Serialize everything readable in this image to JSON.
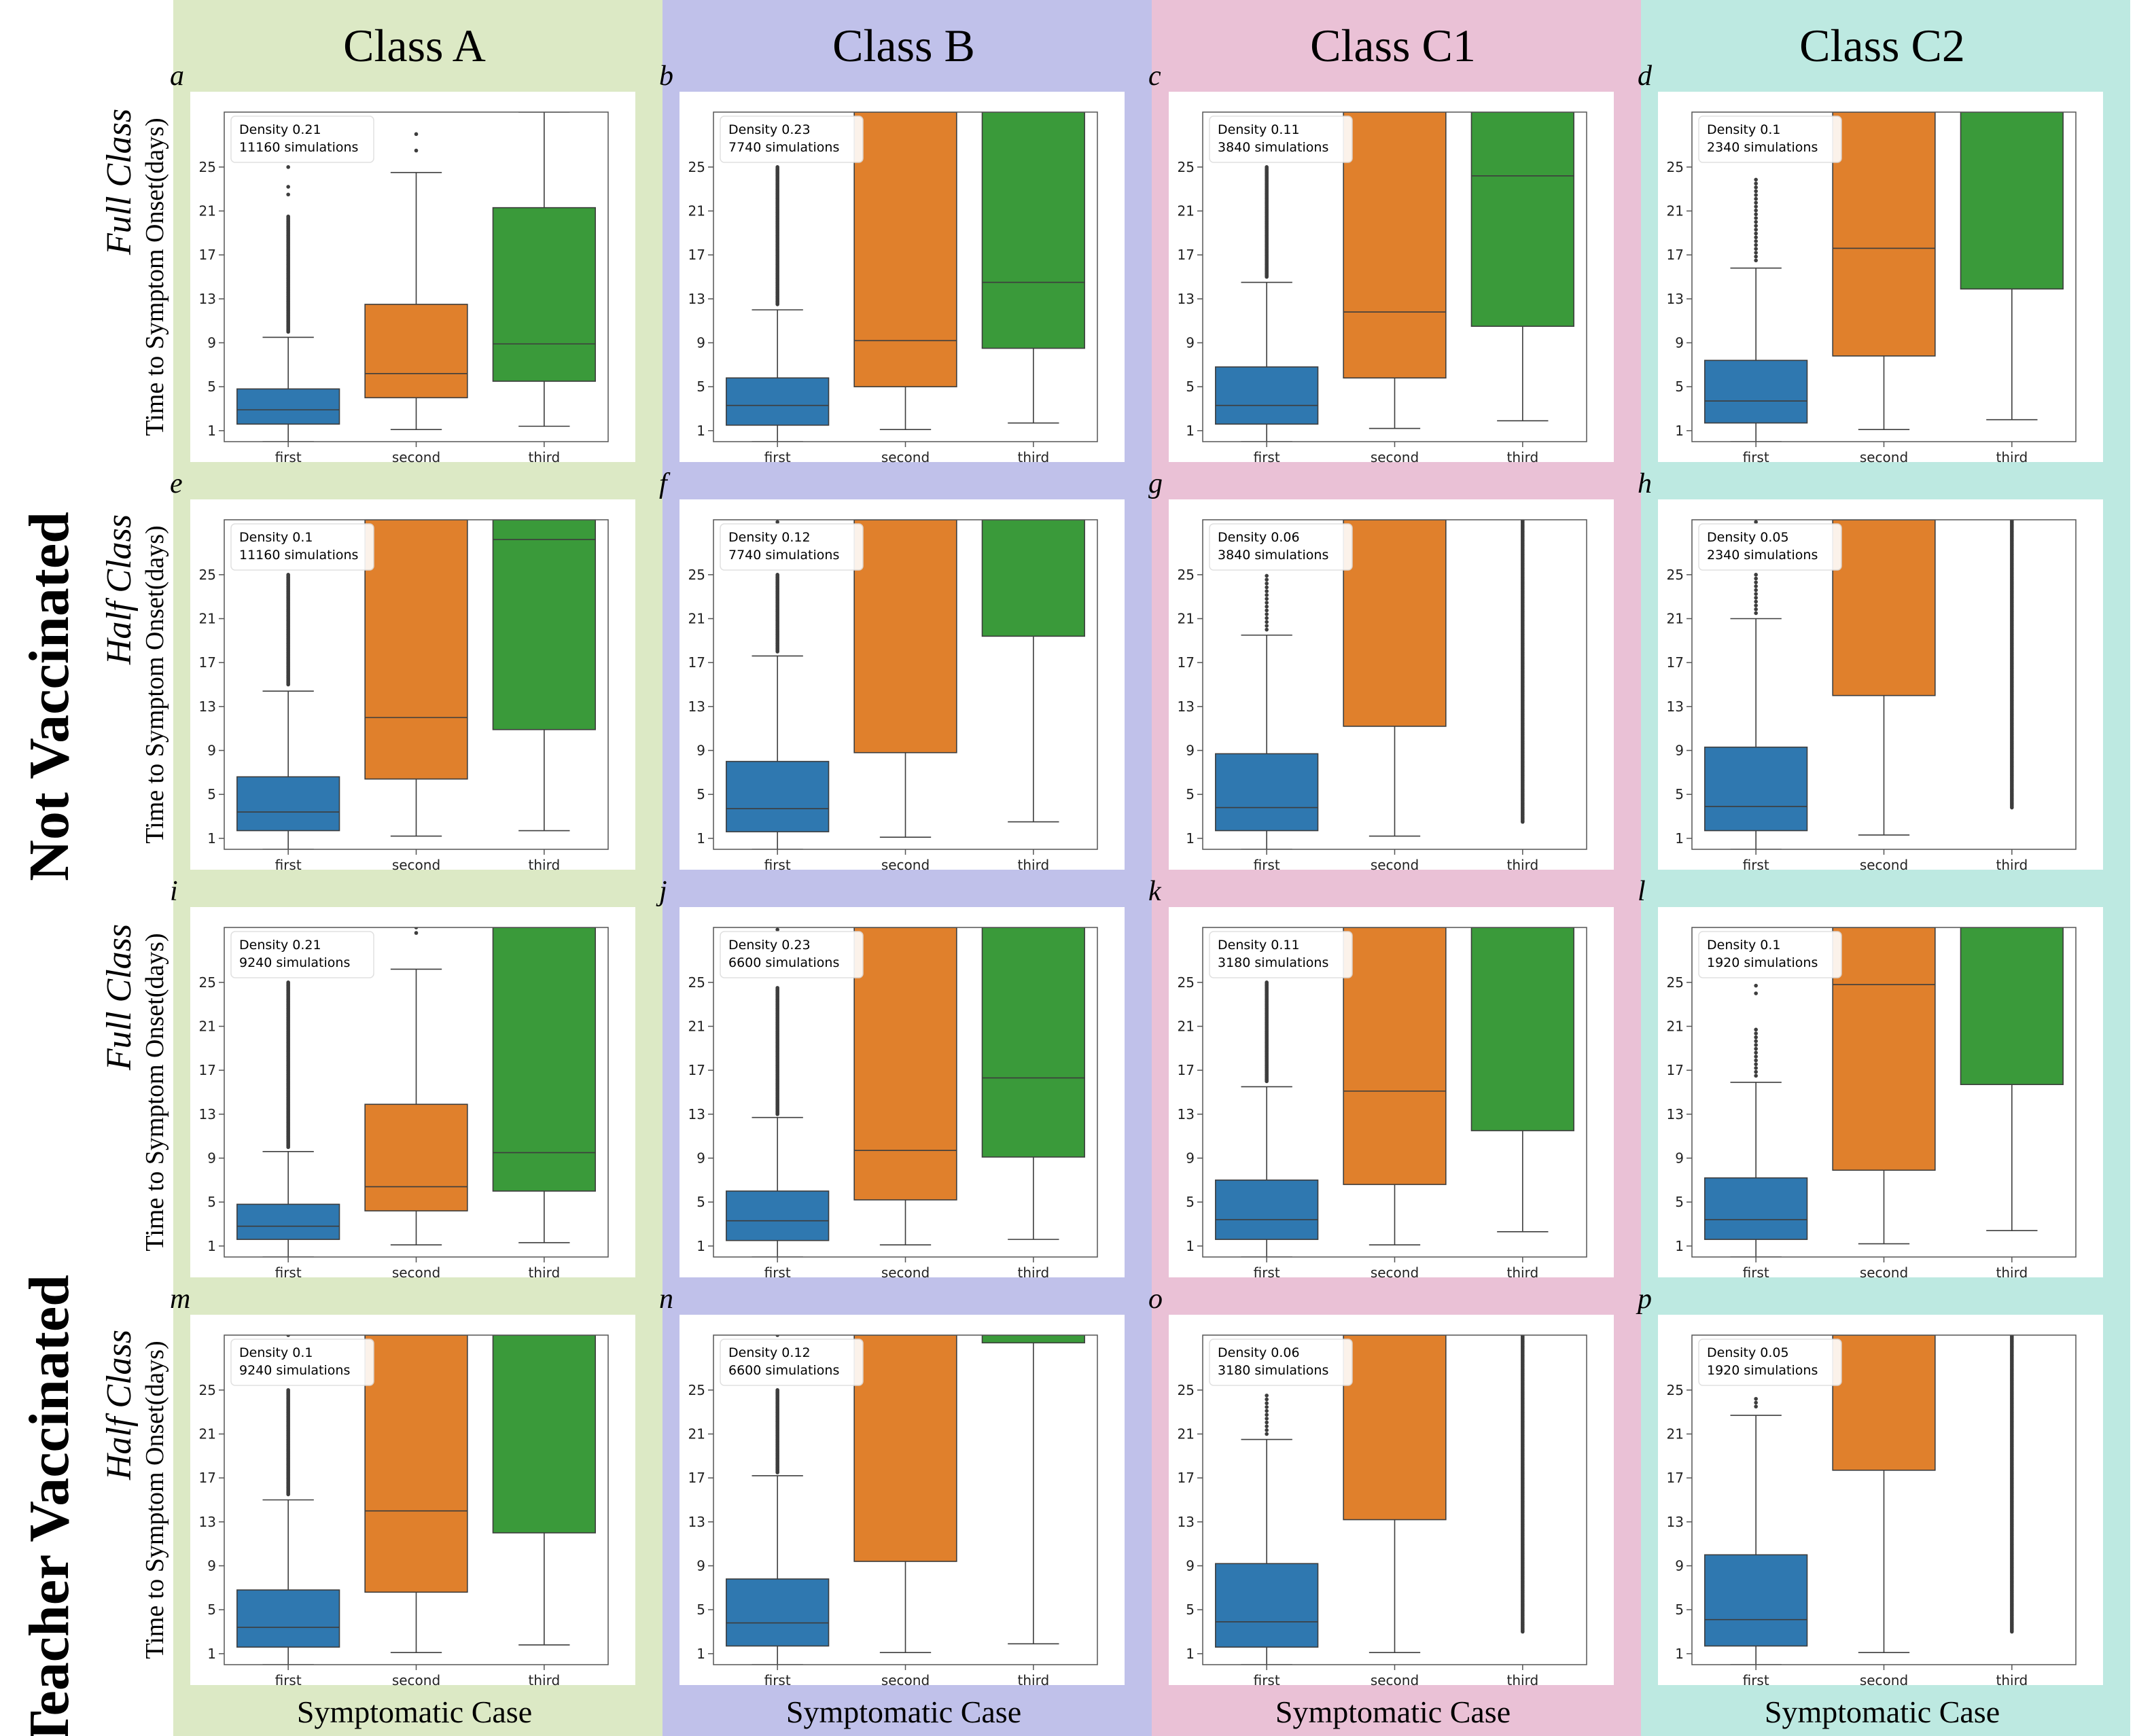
{
  "figure": {
    "column_titles": [
      "Class  A",
      "Class  B",
      "Class  C1",
      "Class  C2"
    ],
    "column_colors": [
      "#dce9c5",
      "#c0c1ea",
      "#eac1d6",
      "#bde9e1"
    ],
    "row_group_labels": [
      "Not Vaccinated",
      "Teacher Vaccinated"
    ],
    "row_sub_labels": [
      "Full Class",
      "Half Class",
      "Full Class",
      "Half Class"
    ],
    "ylabel": "Time to Symptom Onset(days)",
    "xlabel": "Symptomatic Case",
    "categories": [
      "first",
      "second",
      "third"
    ],
    "yticks": [
      1,
      5,
      9,
      13,
      17,
      21,
      25
    ],
    "ylim": [
      0,
      30
    ],
    "box_colors": [
      "#2f78b0",
      "#e0802c",
      "#3a9a3a"
    ]
  },
  "chart_data": [
    {
      "type": "box",
      "panel": "a",
      "density": "Density 0.21",
      "sims": "11160 simulations",
      "boxes": [
        {
          "q1": 1.6,
          "median": 2.9,
          "q3": 4.8,
          "lw": 0,
          "uw": 9.5,
          "out_from": 10,
          "out_to": 20.5,
          "dense": true,
          "extra": [
            22.5,
            23.2,
            25
          ]
        },
        {
          "q1": 4,
          "median": 6.2,
          "q3": 12.5,
          "lw": 1.1,
          "uw": 24.5,
          "extra": [
            26.5,
            28
          ]
        },
        {
          "q1": 5.5,
          "median": 8.9,
          "q3": 21.3,
          "lw": 1.4,
          "uw": 30
        }
      ]
    },
    {
      "type": "box",
      "panel": "b",
      "density": "Density 0.23",
      "sims": "7740 simulations",
      "boxes": [
        {
          "q1": 1.5,
          "median": 3.3,
          "q3": 5.8,
          "lw": 0,
          "uw": 12,
          "out_from": 12.5,
          "out_to": 25,
          "dense": true
        },
        {
          "q1": 5,
          "median": 9.2,
          "q3": 30,
          "lw": 1.1,
          "uw": 30
        },
        {
          "q1": 8.5,
          "median": 14.5,
          "q3": 30,
          "lw": 1.7,
          "uw": 30
        }
      ]
    },
    {
      "type": "box",
      "panel": "c",
      "density": "Density 0.11",
      "sims": "3840 simulations",
      "boxes": [
        {
          "q1": 1.6,
          "median": 3.3,
          "q3": 6.8,
          "lw": 0,
          "uw": 14.5,
          "out_from": 15,
          "out_to": 25,
          "dense": true
        },
        {
          "q1": 5.8,
          "median": 11.8,
          "q3": 30,
          "lw": 1.2,
          "uw": 30
        },
        {
          "q1": 10.5,
          "median": 24.2,
          "q3": 30,
          "lw": 1.9,
          "uw": 30
        }
      ]
    },
    {
      "type": "box",
      "panel": "d",
      "density": "Density 0.1",
      "sims": "2340 simulations",
      "boxes": [
        {
          "q1": 1.7,
          "median": 3.7,
          "q3": 7.4,
          "lw": 0,
          "uw": 15.8,
          "out_from": 16.5,
          "out_to": 24,
          "dense": false
        },
        {
          "q1": 7.8,
          "median": 17.6,
          "q3": 30,
          "lw": 1.1,
          "uw": 30
        },
        {
          "q1": 13.9,
          "median": null,
          "q3": 30,
          "lw": 2,
          "uw": 30
        }
      ]
    },
    {
      "type": "box",
      "panel": "e",
      "density": "Density 0.1",
      "sims": "11160 simulations",
      "boxes": [
        {
          "q1": 1.7,
          "median": 3.4,
          "q3": 6.6,
          "lw": 0,
          "uw": 14.4,
          "out_from": 15,
          "out_to": 25,
          "dense": true
        },
        {
          "q1": 6.4,
          "median": 12,
          "q3": 30,
          "lw": 1.2,
          "uw": 30
        },
        {
          "q1": 10.9,
          "median": 28.2,
          "q3": 30,
          "lw": 1.7,
          "uw": 30
        }
      ]
    },
    {
      "type": "box",
      "panel": "f",
      "density": "Density 0.12",
      "sims": "7740 simulations",
      "boxes": [
        {
          "q1": 1.6,
          "median": 3.7,
          "q3": 8,
          "lw": 0,
          "uw": 17.6,
          "out_from": 18,
          "out_to": 25,
          "dense": true,
          "extra": [
            29.8
          ]
        },
        {
          "q1": 8.8,
          "median": null,
          "q3": 30,
          "lw": 1.1,
          "uw": 30
        },
        {
          "q1": 19.4,
          "median": null,
          "q3": 30,
          "lw": 2.5,
          "uw": 30
        }
      ]
    },
    {
      "type": "box",
      "panel": "g",
      "density": "Density 0.06",
      "sims": "3840 simulations",
      "boxes": [
        {
          "q1": 1.7,
          "median": 3.8,
          "q3": 8.7,
          "lw": 0,
          "uw": 19.5,
          "out_from": 20,
          "out_to": 25,
          "dense": false
        },
        {
          "q1": 11.2,
          "median": null,
          "q3": 30,
          "lw": 1.2,
          "uw": 30
        },
        {
          "q1": null,
          "median": null,
          "q3": null,
          "lw": null,
          "uw": null,
          "out_from": 2.5,
          "out_to": 30,
          "dense": true
        }
      ]
    },
    {
      "type": "box",
      "panel": "h",
      "density": "Density 0.05",
      "sims": "2340 simulations",
      "boxes": [
        {
          "q1": 1.7,
          "median": 3.9,
          "q3": 9.3,
          "lw": 0,
          "uw": 21,
          "out_from": 21.5,
          "out_to": 25,
          "dense": false,
          "extra": [
            29.8
          ]
        },
        {
          "q1": 14,
          "median": null,
          "q3": 30,
          "lw": 1.3,
          "uw": 30
        },
        {
          "q1": null,
          "median": null,
          "q3": null,
          "lw": null,
          "uw": null,
          "out_from": 3.8,
          "out_to": 30,
          "dense": true
        }
      ]
    },
    {
      "type": "box",
      "panel": "i",
      "density": "Density 0.21",
      "sims": "9240 simulations",
      "boxes": [
        {
          "q1": 1.6,
          "median": 2.8,
          "q3": 4.8,
          "lw": 0,
          "uw": 9.6,
          "out_from": 10,
          "out_to": 25,
          "dense": true
        },
        {
          "q1": 4.2,
          "median": 6.4,
          "q3": 13.9,
          "lw": 1.1,
          "uw": 26.2,
          "extra": [
            29.5,
            30
          ]
        },
        {
          "q1": 6,
          "median": 9.5,
          "q3": 30,
          "lw": 1.3,
          "uw": 30
        }
      ]
    },
    {
      "type": "box",
      "panel": "j",
      "density": "Density 0.23",
      "sims": "6600 simulations",
      "boxes": [
        {
          "q1": 1.5,
          "median": 3.3,
          "q3": 6,
          "lw": 0,
          "uw": 12.7,
          "out_from": 13,
          "out_to": 24.5,
          "dense": true,
          "extra": [
            29.8
          ]
        },
        {
          "q1": 5.2,
          "median": 9.7,
          "q3": 30,
          "lw": 1.1,
          "uw": 30
        },
        {
          "q1": 9.1,
          "median": 16.3,
          "q3": 30,
          "lw": 1.6,
          "uw": 30
        }
      ]
    },
    {
      "type": "box",
      "panel": "k",
      "density": "Density 0.11",
      "sims": "3180 simulations",
      "boxes": [
        {
          "q1": 1.6,
          "median": 3.4,
          "q3": 7,
          "lw": 0,
          "uw": 15.5,
          "out_from": 16,
          "out_to": 25,
          "dense": true
        },
        {
          "q1": 6.6,
          "median": 15.1,
          "q3": 30,
          "lw": 1.1,
          "uw": 30
        },
        {
          "q1": 11.5,
          "median": null,
          "q3": 30,
          "lw": 2.3,
          "uw": 30
        }
      ]
    },
    {
      "type": "box",
      "panel": "l",
      "density": "Density 0.1",
      "sims": "1920 simulations",
      "boxes": [
        {
          "q1": 1.6,
          "median": 3.4,
          "q3": 7.2,
          "lw": 0,
          "uw": 15.9,
          "out_from": 16.5,
          "out_to": 21,
          "dense": false,
          "extra": [
            24,
            24.7
          ]
        },
        {
          "q1": 7.9,
          "median": 24.8,
          "q3": 30,
          "lw": 1.2,
          "uw": 30
        },
        {
          "q1": 15.7,
          "median": null,
          "q3": 30,
          "lw": 2.4,
          "uw": 30
        }
      ]
    },
    {
      "type": "box",
      "panel": "m",
      "density": "Density 0.1",
      "sims": "9240 simulations",
      "boxes": [
        {
          "q1": 1.6,
          "median": 3.4,
          "q3": 6.8,
          "lw": 0,
          "uw": 15,
          "out_from": 15.5,
          "out_to": 25,
          "dense": true,
          "extra": [
            30
          ]
        },
        {
          "q1": 6.6,
          "median": 14,
          "q3": 30,
          "lw": 1.1,
          "uw": 30
        },
        {
          "q1": 12,
          "median": null,
          "q3": 30,
          "lw": 1.8,
          "uw": 30
        }
      ]
    },
    {
      "type": "box",
      "panel": "n",
      "density": "Density 0.12",
      "sims": "6600 simulations",
      "boxes": [
        {
          "q1": 1.7,
          "median": 3.8,
          "q3": 7.8,
          "lw": 0,
          "uw": 17.2,
          "out_from": 17.5,
          "out_to": 25,
          "dense": true,
          "extra": [
            30
          ]
        },
        {
          "q1": 9.4,
          "median": null,
          "q3": 30,
          "lw": 1.1,
          "uw": 30
        },
        {
          "q1": 29.3,
          "median": null,
          "q3": 30,
          "lw": 1.9,
          "uw": 30
        }
      ]
    },
    {
      "type": "box",
      "panel": "o",
      "density": "Density 0.06",
      "sims": "3180 simulations",
      "boxes": [
        {
          "q1": 1.6,
          "median": 3.9,
          "q3": 9.2,
          "lw": 0,
          "uw": 20.5,
          "out_from": 21,
          "out_to": 24.5,
          "dense": false
        },
        {
          "q1": 13.2,
          "median": null,
          "q3": 30,
          "lw": 1.1,
          "uw": 30
        },
        {
          "q1": null,
          "median": null,
          "q3": null,
          "lw": null,
          "uw": null,
          "out_from": 3,
          "out_to": 30,
          "dense": true
        }
      ]
    },
    {
      "type": "box",
      "panel": "p",
      "density": "Density 0.05",
      "sims": "1920 simulations",
      "boxes": [
        {
          "q1": 1.7,
          "median": 4.1,
          "q3": 10,
          "lw": 0,
          "uw": 22.7,
          "out_from": 23.5,
          "out_to": 24.3,
          "dense": false
        },
        {
          "q1": 17.7,
          "median": null,
          "q3": 30,
          "lw": 1.1,
          "uw": 30
        },
        {
          "q1": null,
          "median": null,
          "q3": null,
          "lw": null,
          "uw": null,
          "out_from": 3,
          "out_to": 30,
          "dense": true
        }
      ]
    }
  ]
}
